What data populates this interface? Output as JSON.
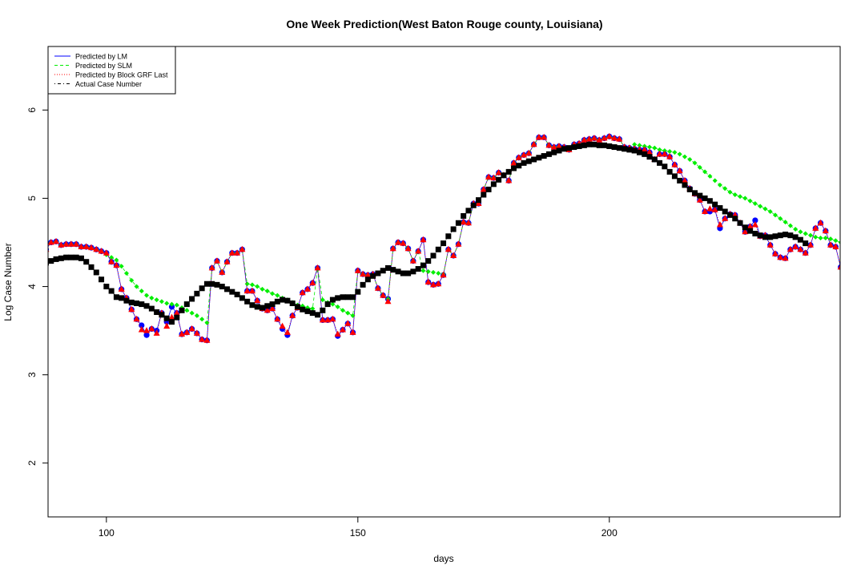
{
  "chart_data": {
    "type": "line",
    "title": "One Week Prediction(West Baton Rouge county, Louisiana)",
    "xlabel": "days",
    "ylabel": "Log Case Number",
    "xlim": [
      88.4,
      245.9
    ],
    "ylim": [
      1.39,
      6.72
    ],
    "xticks": [
      100,
      150,
      200
    ],
    "yticks": [
      2,
      3,
      4,
      5,
      6
    ],
    "legend": "top-left",
    "x": [
      88,
      89,
      90,
      91,
      92,
      93,
      94,
      95,
      96,
      97,
      98,
      99,
      100,
      101,
      102,
      103,
      104,
      105,
      106,
      107,
      108,
      109,
      110,
      111,
      112,
      113,
      114,
      115,
      116,
      117,
      118,
      119,
      120,
      121,
      122,
      123,
      124,
      125,
      126,
      127,
      128,
      129,
      130,
      131,
      132,
      133,
      134,
      135,
      136,
      137,
      138,
      139,
      140,
      141,
      142,
      143,
      144,
      145,
      146,
      147,
      148,
      149,
      150,
      151,
      152,
      153,
      154,
      155,
      156,
      157,
      158,
      159,
      160,
      161,
      162,
      163,
      164,
      165,
      166,
      167,
      168,
      169,
      170,
      171,
      172,
      173,
      174,
      175,
      176,
      177,
      178,
      179,
      180,
      181,
      182,
      183,
      184,
      185,
      186,
      187,
      188,
      189,
      190,
      191,
      192,
      193,
      194,
      195,
      196,
      197,
      198,
      199,
      200,
      201,
      202,
      203,
      204,
      205,
      206,
      207,
      208,
      209,
      210,
      211,
      212,
      213,
      214,
      215,
      216,
      217,
      218,
      219,
      220,
      221,
      222,
      223,
      224,
      225,
      226,
      227,
      228,
      229,
      230,
      231,
      232,
      233,
      234,
      235,
      236,
      237,
      238,
      239,
      240,
      241,
      242,
      243,
      244,
      245,
      246
    ],
    "series": [
      {
        "name": "Predicted by LM",
        "color": "#0000ff",
        "marker": "circle",
        "dash": "solid",
        "values": [
          4.42,
          4.5,
          4.51,
          4.47,
          4.48,
          4.48,
          4.48,
          4.45,
          4.45,
          4.44,
          4.42,
          4.4,
          4.38,
          4.28,
          4.24,
          3.97,
          3.87,
          3.74,
          3.63,
          3.56,
          3.45,
          3.52,
          3.5,
          3.7,
          3.6,
          3.77,
          3.7,
          3.46,
          3.48,
          3.52,
          3.47,
          3.4,
          3.39,
          4.21,
          4.29,
          4.16,
          4.28,
          4.38,
          4.38,
          4.42,
          3.95,
          3.95,
          3.84,
          3.75,
          3.73,
          3.75,
          3.63,
          3.52,
          3.45,
          3.67,
          3.76,
          3.93,
          3.97,
          4.04,
          4.21,
          3.62,
          3.62,
          3.63,
          3.44,
          3.51,
          3.58,
          3.48,
          4.18,
          4.14,
          4.13,
          4.14,
          3.98,
          3.9,
          3.86,
          4.43,
          4.5,
          4.49,
          4.43,
          4.29,
          4.4,
          4.53,
          4.05,
          4.02,
          4.03,
          4.13,
          4.42,
          4.35,
          4.48,
          4.73,
          4.72,
          4.94,
          4.94,
          5.1,
          5.24,
          5.23,
          5.29,
          5.26,
          5.2,
          5.4,
          5.46,
          5.49,
          5.51,
          5.61,
          5.69,
          5.69,
          5.6,
          5.58,
          5.59,
          5.58,
          5.55,
          5.61,
          5.62,
          5.66,
          5.67,
          5.68,
          5.66,
          5.68,
          5.7,
          5.68,
          5.67,
          5.58,
          5.57,
          5.56,
          5.55,
          5.55,
          5.52,
          5.44,
          5.5,
          5.5,
          5.47,
          5.38,
          5.31,
          5.2,
          5.11,
          5.05,
          4.98,
          4.85,
          4.85,
          4.87,
          4.66,
          4.77,
          4.82,
          4.81,
          4.72,
          4.62,
          4.68,
          4.75,
          4.57,
          4.58,
          4.47,
          4.37,
          4.33,
          4.32,
          4.42,
          4.45,
          4.42,
          4.38,
          4.47,
          4.66,
          4.72,
          4.63,
          4.47,
          4.45,
          4.22
        ]
      },
      {
        "name": "Predicted by SLM",
        "color": "#00ee00",
        "marker": "diamond",
        "dash": "dashed",
        "values": [
          4.42,
          4.5,
          4.51,
          4.47,
          4.48,
          4.48,
          4.48,
          4.45,
          4.45,
          4.44,
          4.42,
          4.4,
          4.36,
          4.33,
          4.3,
          4.23,
          4.15,
          4.07,
          4.0,
          3.95,
          3.9,
          3.87,
          3.85,
          3.83,
          3.81,
          3.8,
          3.79,
          3.76,
          3.73,
          3.7,
          3.67,
          3.63,
          3.59,
          4.21,
          4.29,
          4.16,
          4.28,
          4.38,
          4.38,
          4.42,
          4.03,
          4.02,
          4.0,
          3.97,
          3.95,
          3.92,
          3.9,
          3.87,
          3.85,
          3.82,
          3.79,
          3.78,
          3.76,
          3.75,
          4.21,
          3.85,
          3.82,
          3.8,
          3.77,
          3.73,
          3.7,
          3.67,
          4.18,
          4.14,
          4.13,
          4.14,
          3.98,
          3.9,
          3.86,
          4.43,
          4.5,
          4.49,
          4.43,
          4.29,
          4.4,
          4.18,
          4.17,
          4.16,
          4.15,
          4.14,
          4.42,
          4.35,
          4.48,
          4.73,
          4.72,
          4.94,
          4.94,
          5.1,
          5.24,
          5.23,
          5.29,
          5.26,
          5.2,
          5.4,
          5.46,
          5.49,
          5.51,
          5.61,
          5.69,
          5.69,
          5.6,
          5.58,
          5.59,
          5.58,
          5.55,
          5.61,
          5.62,
          5.66,
          5.67,
          5.68,
          5.66,
          5.68,
          5.7,
          5.68,
          5.67,
          5.58,
          5.57,
          5.61,
          5.6,
          5.59,
          5.58,
          5.57,
          5.55,
          5.54,
          5.53,
          5.52,
          5.5,
          5.47,
          5.44,
          5.4,
          5.35,
          5.3,
          5.25,
          5.2,
          5.15,
          5.11,
          5.07,
          5.04,
          5.02,
          5.0,
          4.97,
          4.94,
          4.91,
          4.88,
          4.85,
          4.81,
          4.77,
          4.73,
          4.69,
          4.65,
          4.62,
          4.6,
          4.58,
          4.56,
          4.55,
          4.55,
          4.54,
          4.52,
          4.5
        ]
      },
      {
        "name": "Predicted by Block GRF Last",
        "color": "#ff0000",
        "marker": "triangle",
        "dash": "dotted",
        "values": [
          4.42,
          4.5,
          4.51,
          4.47,
          4.48,
          4.48,
          4.48,
          4.45,
          4.45,
          4.44,
          4.42,
          4.4,
          4.38,
          4.28,
          4.24,
          3.97,
          3.87,
          3.74,
          3.63,
          3.51,
          3.5,
          3.52,
          3.47,
          3.7,
          3.55,
          3.65,
          3.7,
          3.46,
          3.48,
          3.52,
          3.47,
          3.4,
          3.39,
          4.21,
          4.29,
          4.16,
          4.28,
          4.38,
          4.38,
          4.42,
          3.95,
          3.95,
          3.84,
          3.75,
          3.73,
          3.75,
          3.63,
          3.55,
          3.48,
          3.67,
          3.76,
          3.93,
          3.97,
          4.04,
          4.21,
          3.62,
          3.62,
          3.63,
          3.46,
          3.51,
          3.58,
          3.48,
          4.18,
          4.14,
          4.13,
          4.14,
          3.98,
          3.9,
          3.83,
          4.43,
          4.5,
          4.49,
          4.43,
          4.29,
          4.4,
          4.53,
          4.05,
          4.02,
          4.03,
          4.13,
          4.42,
          4.35,
          4.48,
          4.73,
          4.72,
          4.94,
          4.94,
          5.1,
          5.24,
          5.23,
          5.29,
          5.26,
          5.2,
          5.4,
          5.46,
          5.49,
          5.51,
          5.61,
          5.69,
          5.69,
          5.6,
          5.58,
          5.59,
          5.58,
          5.55,
          5.61,
          5.62,
          5.66,
          5.67,
          5.68,
          5.66,
          5.68,
          5.7,
          5.68,
          5.67,
          5.58,
          5.57,
          5.56,
          5.55,
          5.55,
          5.52,
          5.44,
          5.5,
          5.5,
          5.47,
          5.38,
          5.31,
          5.2,
          5.11,
          5.05,
          4.98,
          4.85,
          4.88,
          4.87,
          4.7,
          4.77,
          4.82,
          4.81,
          4.72,
          4.62,
          4.68,
          4.7,
          4.57,
          4.58,
          4.47,
          4.37,
          4.33,
          4.32,
          4.42,
          4.45,
          4.42,
          4.38,
          4.47,
          4.66,
          4.72,
          4.63,
          4.47,
          4.45,
          4.22
        ]
      },
      {
        "name": "Actual Case Number",
        "color": "#000000",
        "marker": "square",
        "dash": "dotdash",
        "values": [
          4.27,
          4.29,
          4.31,
          4.32,
          4.33,
          4.33,
          4.33,
          4.32,
          4.28,
          4.22,
          4.16,
          4.08,
          4.0,
          3.95,
          3.88,
          3.87,
          3.84,
          3.82,
          3.81,
          3.8,
          3.78,
          3.75,
          3.71,
          3.68,
          3.64,
          3.6,
          3.65,
          3.73,
          3.8,
          3.86,
          3.92,
          3.98,
          4.03,
          4.03,
          4.02,
          4.0,
          3.97,
          3.94,
          3.91,
          3.87,
          3.83,
          3.79,
          3.77,
          3.76,
          3.78,
          3.8,
          3.83,
          3.85,
          3.84,
          3.81,
          3.77,
          3.74,
          3.72,
          3.7,
          3.68,
          3.73,
          3.8,
          3.85,
          3.87,
          3.88,
          3.88,
          3.88,
          3.94,
          4.02,
          4.08,
          4.12,
          4.15,
          4.18,
          4.21,
          4.19,
          4.17,
          4.15,
          4.15,
          4.17,
          4.2,
          4.24,
          4.29,
          4.35,
          4.42,
          4.49,
          4.57,
          4.65,
          4.72,
          4.8,
          4.86,
          4.92,
          4.98,
          5.04,
          5.1,
          5.16,
          5.21,
          5.26,
          5.3,
          5.34,
          5.37,
          5.4,
          5.42,
          5.44,
          5.46,
          5.48,
          5.5,
          5.52,
          5.54,
          5.56,
          5.57,
          5.58,
          5.59,
          5.6,
          5.61,
          5.61,
          5.6,
          5.6,
          5.59,
          5.58,
          5.57,
          5.56,
          5.55,
          5.54,
          5.52,
          5.5,
          5.47,
          5.44,
          5.4,
          5.36,
          5.3,
          5.25,
          5.2,
          5.15,
          5.1,
          5.06,
          5.03,
          5.0,
          4.97,
          4.93,
          4.89,
          4.85,
          4.81,
          4.77,
          4.72,
          4.67,
          4.63,
          4.6,
          4.58,
          4.56,
          4.56,
          4.57,
          4.58,
          4.59,
          4.58,
          4.56,
          4.53,
          4.49,
          null,
          null,
          null,
          null,
          null,
          null,
          null
        ]
      }
    ]
  }
}
